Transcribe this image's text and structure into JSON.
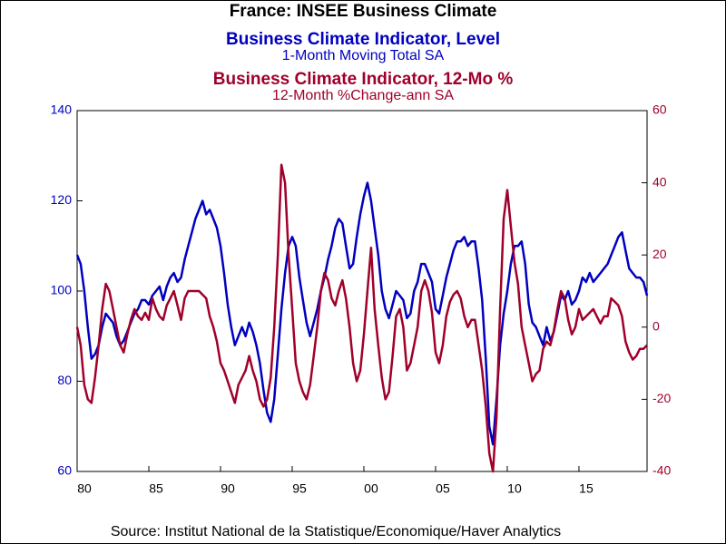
{
  "chart_data": {
    "type": "line",
    "title": "France: INSEE Business Climate",
    "subtitles": [
      {
        "text": "Business Climate Indicator, Level",
        "note": "1-Month Moving Total     SA"
      },
      {
        "text": "Business Climate Indicator, 12-Mo %",
        "note": "12-Month %Change-ann     SA"
      }
    ],
    "source": "Source:  Institut National de la Statistique/Economique/Haver Analytics",
    "x": [
      1980,
      1980.25,
      1980.5,
      1980.75,
      1981,
      1981.25,
      1981.5,
      1981.75,
      1982,
      1982.25,
      1982.5,
      1982.75,
      1983,
      1983.25,
      1983.5,
      1983.75,
      1984,
      1984.25,
      1984.5,
      1984.75,
      1985,
      1985.25,
      1985.5,
      1985.75,
      1986,
      1986.25,
      1986.5,
      1986.75,
      1987,
      1987.25,
      1987.5,
      1987.75,
      1988,
      1988.25,
      1988.5,
      1988.75,
      1989,
      1989.25,
      1989.5,
      1989.75,
      1990,
      1990.25,
      1990.5,
      1990.75,
      1991,
      1991.25,
      1991.5,
      1991.75,
      1992,
      1992.25,
      1992.5,
      1992.75,
      1993,
      1993.25,
      1993.5,
      1993.75,
      1994,
      1994.25,
      1994.5,
      1994.75,
      1995,
      1995.25,
      1995.5,
      1995.75,
      1996,
      1996.25,
      1996.5,
      1996.75,
      1997,
      1997.25,
      1997.5,
      1997.75,
      1998,
      1998.25,
      1998.5,
      1998.75,
      1999,
      1999.25,
      1999.5,
      1999.75,
      2000,
      2000.25,
      2000.5,
      2000.75,
      2001,
      2001.25,
      2001.5,
      2001.75,
      2002,
      2002.25,
      2002.5,
      2002.75,
      2003,
      2003.25,
      2003.5,
      2003.75,
      2004,
      2004.25,
      2004.5,
      2004.75,
      2005,
      2005.25,
      2005.5,
      2005.75,
      2006,
      2006.25,
      2006.5,
      2006.75,
      2007,
      2007.25,
      2007.5,
      2007.75,
      2008,
      2008.25,
      2008.5,
      2008.75,
      2009,
      2009.25,
      2009.5,
      2009.75,
      2010,
      2010.25,
      2010.5,
      2010.75,
      2011,
      2011.25,
      2011.5,
      2011.75,
      2012,
      2012.25,
      2012.5,
      2012.75,
      2013,
      2013.25,
      2013.5,
      2013.75,
      2014,
      2014.25,
      2014.5,
      2014.75,
      2015,
      2015.25,
      2015.5,
      2015.75,
      2016,
      2016.25,
      2016.5,
      2016.75,
      2017,
      2017.25,
      2017.5,
      2017.75,
      2018,
      2018.25,
      2018.5,
      2018.75,
      2019,
      2019.25,
      2019.5,
      2019.75
    ],
    "series": [
      {
        "name": "Business Climate Indicator, Level",
        "color": "#0000c0",
        "axis": "y",
        "values": [
          108,
          106,
          100,
          92,
          85,
          86,
          88,
          92,
          95,
          94,
          93,
          90,
          88,
          89,
          91,
          93,
          95,
          96,
          98,
          98,
          97,
          99,
          100,
          101,
          98,
          101,
          103,
          104,
          102,
          103,
          107,
          110,
          113,
          116,
          118,
          120,
          117,
          118,
          116,
          114,
          110,
          104,
          97,
          92,
          88,
          90,
          92,
          90,
          93,
          91,
          88,
          84,
          78,
          73,
          71,
          76,
          86,
          96,
          104,
          110,
          112,
          110,
          103,
          98,
          93,
          90,
          93,
          96,
          100,
          103,
          107,
          110,
          114,
          116,
          115,
          110,
          105,
          106,
          112,
          117,
          121,
          124,
          120,
          114,
          108,
          100,
          96,
          94,
          97,
          100,
          99,
          98,
          94,
          95,
          100,
          102,
          106,
          106,
          104,
          102,
          96,
          95,
          99,
          103,
          106,
          109,
          111,
          111,
          112,
          110,
          111,
          111,
          105,
          98,
          85,
          70,
          66,
          76,
          88,
          95,
          100,
          106,
          110,
          110,
          111,
          106,
          97,
          93,
          92,
          90,
          88,
          92,
          89,
          91,
          95,
          99,
          98,
          100,
          97,
          98,
          100,
          103,
          102,
          104,
          102,
          103,
          104,
          105,
          106,
          108,
          110,
          112,
          113,
          109,
          105,
          104,
          103,
          103,
          102,
          99
        ]
      },
      {
        "name": "Business Climate Indicator, 12-Mo %",
        "color": "#a0002a",
        "axis": "y2",
        "values": [
          0,
          -5,
          -16,
          -20,
          -21,
          -14,
          -5,
          5,
          12,
          10,
          5,
          0,
          -5,
          -7,
          -2,
          2,
          5,
          3,
          2,
          4,
          2,
          8,
          5,
          3,
          2,
          6,
          8,
          10,
          6,
          2,
          8,
          10,
          10,
          10,
          10,
          9,
          8,
          3,
          0,
          -4,
          -10,
          -12,
          -15,
          -18,
          -21,
          -16,
          -14,
          -12,
          -8,
          -12,
          -15,
          -20,
          -22,
          -20,
          -14,
          0,
          20,
          45,
          40,
          20,
          5,
          -10,
          -15,
          -18,
          -20,
          -16,
          -8,
          0,
          10,
          15,
          13,
          8,
          6,
          10,
          13,
          8,
          0,
          -10,
          -15,
          -12,
          -2,
          10,
          22,
          5,
          -5,
          -14,
          -20,
          -18,
          -8,
          3,
          5,
          0,
          -12,
          -10,
          -5,
          0,
          10,
          13,
          10,
          4,
          -7,
          -10,
          -5,
          3,
          7,
          9,
          10,
          8,
          3,
          0,
          2,
          2,
          -5,
          -12,
          -22,
          -35,
          -40,
          -25,
          5,
          30,
          38,
          28,
          18,
          12,
          0,
          -5,
          -10,
          -15,
          -13,
          -12,
          -6,
          -4,
          -5,
          -1,
          5,
          10,
          8,
          2,
          -2,
          0,
          5,
          2,
          3,
          4,
          5,
          3,
          1,
          3,
          3,
          8,
          7,
          6,
          3,
          -4,
          -7,
          -9,
          -8,
          -6,
          -6,
          -5
        ]
      }
    ],
    "xlim": [
      1980,
      2019.75
    ],
    "xticks": [
      {
        "value": 1980,
        "label": "80"
      },
      {
        "value": 1985,
        "label": "85"
      },
      {
        "value": 1990,
        "label": "90"
      },
      {
        "value": 1995,
        "label": "95"
      },
      {
        "value": 2000,
        "label": "00"
      },
      {
        "value": 2005,
        "label": "05"
      },
      {
        "value": 2010,
        "label": "10"
      },
      {
        "value": 2015,
        "label": "15"
      }
    ],
    "ylim": [
      60,
      140
    ],
    "yticks": [
      60,
      80,
      100,
      120,
      140
    ],
    "y2lim": [
      -40,
      60
    ],
    "y2ticks": [
      -40,
      -20,
      0,
      20,
      40,
      60
    ]
  }
}
